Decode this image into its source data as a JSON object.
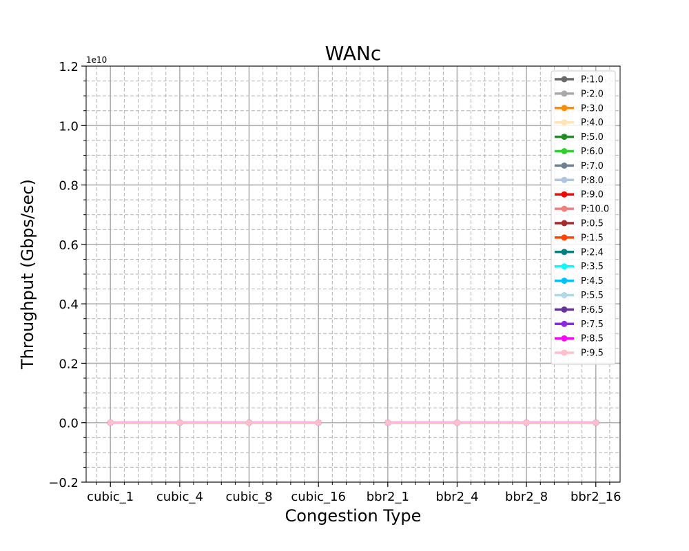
{
  "chart_data": {
    "type": "line",
    "title": "WANc",
    "xlabel": "Congestion Type",
    "ylabel": "Throughput (Gbps/sec)",
    "y_exponent_label": "1e10",
    "ylim": [
      -0.2,
      1.2
    ],
    "y_scale": 10000000000.0,
    "yticks": [
      -0.2,
      0.0,
      0.2,
      0.4,
      0.6,
      0.8,
      1.0,
      1.2
    ],
    "ytick_labels": [
      "−0.2",
      "0.0",
      "0.2",
      "0.4",
      "0.6",
      "0.8",
      "1.0",
      "1.2"
    ],
    "categories": [
      "cubic_1",
      "cubic_4",
      "cubic_8",
      "cubic_16",
      "bbr2_1",
      "bbr2_4",
      "bbr2_8",
      "bbr2_16"
    ],
    "grid": true,
    "legend_position": "top-right",
    "series": [
      {
        "name": "P:1.0",
        "color": "#696969",
        "values": [
          0,
          0,
          0,
          0,
          0,
          0,
          0,
          0
        ]
      },
      {
        "name": "P:2.0",
        "color": "#a9a9a9",
        "values": [
          0,
          0,
          0,
          0,
          0,
          0,
          0,
          0
        ]
      },
      {
        "name": "P:3.0",
        "color": "#ff8c00",
        "values": [
          0,
          0,
          0,
          0,
          0,
          0,
          0,
          0
        ]
      },
      {
        "name": "P:4.0",
        "color": "#ffe4b5",
        "values": [
          0,
          0,
          0,
          0,
          0,
          0,
          0,
          0
        ]
      },
      {
        "name": "P:5.0",
        "color": "#228b22",
        "values": [
          0,
          0,
          0,
          0,
          0,
          0,
          0,
          0
        ]
      },
      {
        "name": "P:6.0",
        "color": "#32cd32",
        "values": [
          0,
          0,
          0,
          0,
          0,
          0,
          0,
          0
        ]
      },
      {
        "name": "P:7.0",
        "color": "#708090",
        "values": [
          0,
          0,
          0,
          0,
          0,
          0,
          0,
          0
        ]
      },
      {
        "name": "P:8.0",
        "color": "#b0c4de",
        "values": [
          0,
          0,
          0,
          0,
          0,
          0,
          0,
          0
        ]
      },
      {
        "name": "P:9.0",
        "color": "#ff0000",
        "values": [
          0,
          0,
          0,
          0,
          0,
          0,
          0,
          0
        ]
      },
      {
        "name": "P:10.0",
        "color": "#f08080",
        "values": [
          0,
          0,
          0,
          0,
          0,
          0,
          0,
          0
        ]
      },
      {
        "name": "P:0.5",
        "color": "#a52a2a",
        "values": [
          0,
          0,
          0,
          0,
          0,
          0,
          0,
          0
        ]
      },
      {
        "name": "P:1.5",
        "color": "#ff4500",
        "values": [
          0,
          0,
          0,
          0,
          0,
          0,
          0,
          0
        ]
      },
      {
        "name": "P:2.4",
        "color": "#008080",
        "values": [
          0,
          0,
          0,
          0,
          0,
          0,
          0,
          0
        ]
      },
      {
        "name": "P:3.5",
        "color": "#00ffff",
        "values": [
          0,
          0,
          0,
          0,
          0,
          0,
          0,
          0
        ]
      },
      {
        "name": "P:4.5",
        "color": "#00bfff",
        "values": [
          0,
          0,
          0,
          0,
          0,
          0,
          0,
          0
        ]
      },
      {
        "name": "P:5.5",
        "color": "#add8e6",
        "values": [
          0,
          0,
          0,
          0,
          0,
          0,
          0,
          0
        ]
      },
      {
        "name": "P:6.5",
        "color": "#663399",
        "values": [
          0,
          0,
          0,
          0,
          0,
          0,
          0,
          0
        ]
      },
      {
        "name": "P:7.5",
        "color": "#8a2be2",
        "values": [
          0,
          0,
          0,
          0,
          0,
          0,
          0,
          0
        ]
      },
      {
        "name": "P:8.5",
        "color": "#ff00ff",
        "values": [
          0,
          0,
          0,
          0,
          0,
          0,
          0,
          0
        ]
      },
      {
        "name": "P:9.5",
        "color": "#ffc0cb",
        "values": [
          0,
          0,
          0,
          0,
          0,
          0,
          0,
          0
        ]
      }
    ]
  }
}
